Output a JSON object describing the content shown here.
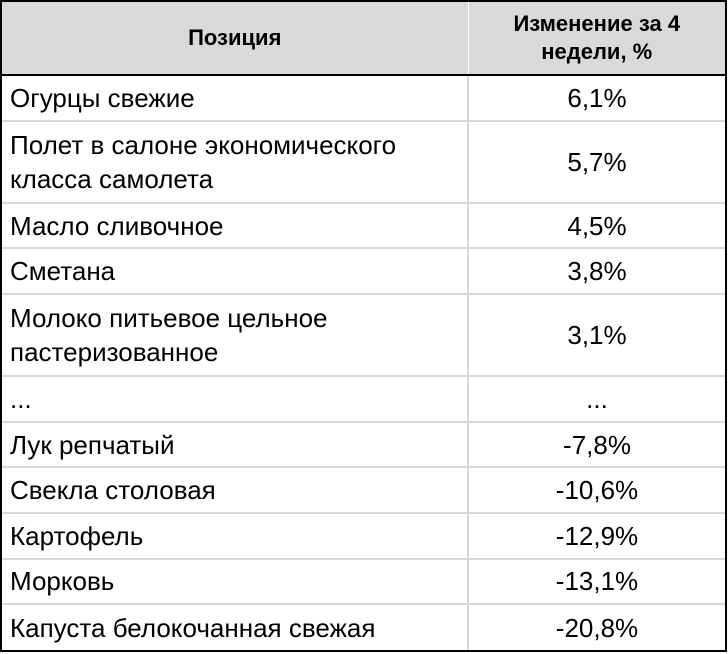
{
  "header": {
    "col_position": "Позиция",
    "col_change": "Изменение за 4 недели, %"
  },
  "rows": [
    {
      "position": "Огурцы свежие",
      "change": "6,1%"
    },
    {
      "position": "Полет в салоне экономического класса самолета",
      "change": "5,7%"
    },
    {
      "position": "Масло сливочное",
      "change": "4,5%"
    },
    {
      "position": "Сметана",
      "change": "3,8%"
    },
    {
      "position": "Молоко питьевое цельное пастеризованное",
      "change": "3,1%"
    },
    {
      "position": "...",
      "change": "..."
    },
    {
      "position": "Лук репчатый",
      "change": "-7,8%"
    },
    {
      "position": "Свекла столовая",
      "change": "-10,6%"
    },
    {
      "position": "Картофель",
      "change": "-12,9%"
    },
    {
      "position": "Морковь",
      "change": "-13,1%"
    },
    {
      "position": "Капуста белокочанная свежая",
      "change": "-20,8%"
    }
  ],
  "colors": {
    "header_bg": "#d9d9d9",
    "border_outer": "#000000",
    "grid_line": "#d8d8d8"
  }
}
